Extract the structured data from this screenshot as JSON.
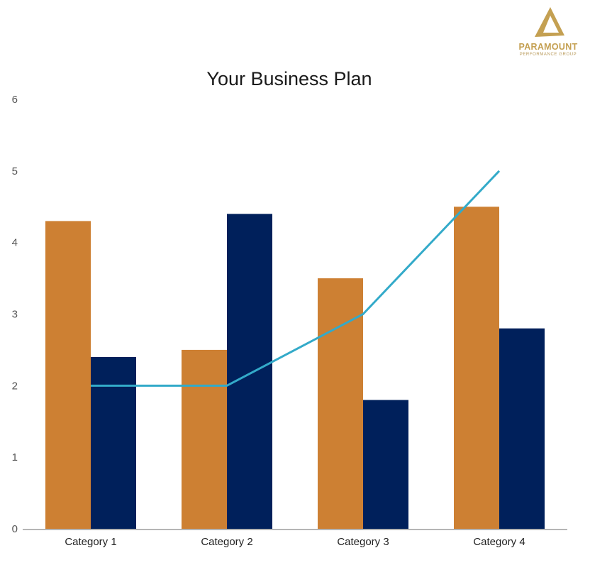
{
  "chart_data": {
    "type": "bar",
    "title": "Your Business Plan",
    "categories": [
      "Category 1",
      "Category 2",
      "Category 3",
      "Category 4"
    ],
    "series": [
      {
        "kind": "bar",
        "color": "#cd8033",
        "values": [
          4.3,
          2.5,
          3.5,
          4.5
        ]
      },
      {
        "kind": "bar",
        "color": "#00205b",
        "values": [
          2.4,
          4.4,
          1.8,
          2.8
        ]
      },
      {
        "kind": "line",
        "color": "#33aac9",
        "values": [
          2,
          2,
          3,
          5
        ]
      }
    ],
    "ylim": [
      0,
      6
    ],
    "yticks": [
      "0",
      "1",
      "2",
      "3",
      "4",
      "5",
      "6"
    ],
    "grid": false,
    "legend": "none"
  },
  "logo": {
    "name": "PARAMOUNT",
    "subtitle": "PERFORMANCE GROUP",
    "color": "#c4a052"
  }
}
